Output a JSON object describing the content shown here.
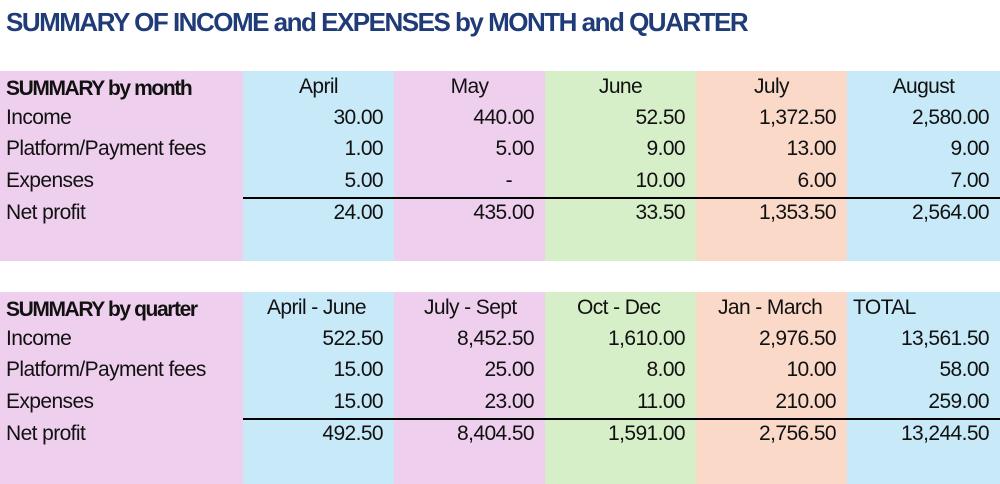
{
  "title": "SUMMARY OF INCOME and EXPENSES by MONTH and QUARTER",
  "monthly": {
    "header_label": "SUMMARY by month",
    "columns": [
      "April",
      "May",
      "June",
      "July",
      "August"
    ],
    "rows": [
      {
        "label": "Income",
        "values": [
          "30.00",
          "440.00",
          "52.50",
          "1,372.50",
          "2,580.00"
        ]
      },
      {
        "label": "Platform/Payment fees",
        "values": [
          "1.00",
          "5.00",
          "9.00",
          "13.00",
          "9.00"
        ]
      },
      {
        "label": "Expenses",
        "values": [
          "5.00",
          "-",
          "10.00",
          "6.00",
          "7.00"
        ]
      },
      {
        "label": "Net profit",
        "values": [
          "24.00",
          "435.00",
          "33.50",
          "1,353.50",
          "2,564.00"
        ]
      }
    ]
  },
  "quarterly": {
    "header_label": "SUMMARY by quarter",
    "columns": [
      "April - June",
      "July - Sept",
      "Oct - Dec",
      "Jan - March",
      "TOTAL"
    ],
    "rows": [
      {
        "label": "Income",
        "values": [
          "522.50",
          "8,452.50",
          "1,610.00",
          "2,976.50",
          "13,561.50"
        ]
      },
      {
        "label": "Platform/Payment fees",
        "values": [
          "15.00",
          "25.00",
          "8.00",
          "10.00",
          "58.00"
        ]
      },
      {
        "label": "Expenses",
        "values": [
          "15.00",
          "23.00",
          "11.00",
          "210.00",
          "259.00"
        ]
      },
      {
        "label": "Net profit",
        "values": [
          "492.50",
          "8,404.50",
          "1,591.00",
          "2,756.50",
          "13,244.50"
        ]
      }
    ]
  },
  "colors": {
    "title": "#1f3b78",
    "pink": "#efcfee",
    "blue": "#c8e9f7",
    "green": "#d6efc9",
    "peach": "#fad9c8"
  }
}
